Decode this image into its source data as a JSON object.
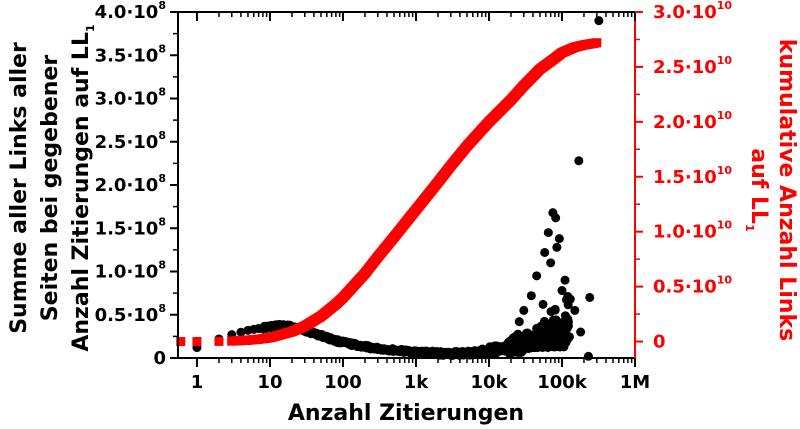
{
  "chart_data": {
    "type": "scatter",
    "xlabel": "Anzahl Zitierungen",
    "x_scale": "log",
    "xlim": [
      0.55,
      1000000
    ],
    "x_ticks": [
      {
        "value": 1,
        "label": "1"
      },
      {
        "value": 10,
        "label": "10"
      },
      {
        "value": 100,
        "label": "100"
      },
      {
        "value": 1000,
        "label": "1k"
      },
      {
        "value": 10000,
        "label": "10k"
      },
      {
        "value": 100000,
        "label": "100k"
      },
      {
        "value": 1000000,
        "label": "1M"
      }
    ],
    "y_left": {
      "label_lines": [
        "Summe aller Links aller",
        "Seiten bei gegebener",
        "Anzahl Zitierungen auf LL"
      ],
      "label_subscript": "1",
      "color": "#000000",
      "ylim": [
        0,
        400000000
      ],
      "ticks": [
        {
          "value": 0,
          "mant": "0",
          "exp": ""
        },
        {
          "value": 50000000,
          "mant": "0.5·10",
          "exp": "8"
        },
        {
          "value": 100000000,
          "mant": "1.0·10",
          "exp": "8"
        },
        {
          "value": 150000000,
          "mant": "1.5·10",
          "exp": "8"
        },
        {
          "value": 200000000,
          "mant": "2.0·10",
          "exp": "8"
        },
        {
          "value": 250000000,
          "mant": "2.5·10",
          "exp": "8"
        },
        {
          "value": 300000000,
          "mant": "3.0·10",
          "exp": "8"
        },
        {
          "value": 350000000,
          "mant": "3.5·10",
          "exp": "8"
        },
        {
          "value": 400000000,
          "mant": "4.0·10",
          "exp": "8"
        }
      ]
    },
    "y_right": {
      "label_lines": [
        "kumulative Anzahl Links",
        "auf LL"
      ],
      "label_subscript": "1",
      "color": "#ff0000",
      "ylim": [
        -1500000000,
        30000000000
      ],
      "ticks": [
        {
          "value": 0,
          "mant": "0",
          "exp": ""
        },
        {
          "value": 5000000000,
          "mant": "0.5·10",
          "exp": "10"
        },
        {
          "value": 10000000000,
          "mant": "1.0·10",
          "exp": "10"
        },
        {
          "value": 15000000000,
          "mant": "1.5·10",
          "exp": "10"
        },
        {
          "value": 20000000000,
          "mant": "2.0·10",
          "exp": "10"
        },
        {
          "value": 25000000000,
          "mant": "2.5·10",
          "exp": "10"
        },
        {
          "value": 30000000000,
          "mant": "3.0·10",
          "exp": "10"
        }
      ]
    },
    "grid": false,
    "legend": "none",
    "series": [
      {
        "marker": "circle",
        "color": "#000000",
        "axis": "left",
        "trend": {
          "x": [
            1,
            2,
            3,
            5,
            8,
            12,
            15,
            20,
            30,
            50,
            80,
            100,
            200,
            300,
            500,
            800,
            1000,
            2000,
            3000,
            5000,
            10000,
            20000,
            50000
          ],
          "y": [
            12000000,
            22000000,
            27000000,
            32000000,
            35000000,
            37000000,
            37500000,
            36000000,
            32000000,
            26000000,
            20000000,
            18000000,
            13000000,
            11000000,
            9000000,
            7500000,
            7000000,
            5500000,
            5000000,
            5500000,
            7000000,
            9000000,
            12000000
          ]
        },
        "outliers": [
          {
            "x": 320000,
            "y": 390000000
          },
          {
            "x": 170000,
            "y": 228000000
          },
          {
            "x": 75000,
            "y": 168000000
          },
          {
            "x": 82000,
            "y": 162000000
          },
          {
            "x": 65000,
            "y": 145000000
          },
          {
            "x": 92000,
            "y": 138000000
          },
          {
            "x": 85000,
            "y": 128000000
          },
          {
            "x": 58000,
            "y": 122000000
          },
          {
            "x": 70000,
            "y": 110000000
          },
          {
            "x": 110000,
            "y": 90000000
          },
          {
            "x": 45000,
            "y": 95000000
          },
          {
            "x": 100000,
            "y": 78000000
          },
          {
            "x": 240000,
            "y": 70000000
          },
          {
            "x": 130000,
            "y": 68000000
          },
          {
            "x": 38000,
            "y": 72000000
          },
          {
            "x": 55000,
            "y": 62000000
          },
          {
            "x": 150000,
            "y": 55000000
          },
          {
            "x": 30000,
            "y": 55000000
          },
          {
            "x": 120000,
            "y": 45000000
          },
          {
            "x": 60000,
            "y": 40000000
          },
          {
            "x": 26000,
            "y": 42000000
          },
          {
            "x": 180000,
            "y": 30000000
          },
          {
            "x": 230000,
            "y": 2000000
          }
        ]
      },
      {
        "marker": "square",
        "color": "#ff0000",
        "axis": "right",
        "x": [
          0.6,
          1,
          2,
          3,
          5,
          8,
          10,
          20,
          30,
          50,
          80,
          100,
          200,
          300,
          500,
          800,
          1000,
          2000,
          3000,
          5000,
          8000,
          10000,
          20000,
          30000,
          50000,
          80000,
          100000,
          150000,
          200000,
          300000
        ],
        "y": [
          0,
          0,
          10000000,
          40000000,
          120000000,
          250000000,
          350000000,
          900000000,
          1400000000,
          2300000000,
          3400000000,
          4000000000,
          6200000000,
          7700000000,
          9500000000,
          11200000000,
          12000000000,
          14500000000,
          16000000000,
          17800000000,
          19300000000,
          20000000000,
          22000000000,
          23300000000,
          24800000000,
          25800000000,
          26300000000,
          26800000000,
          27000000000,
          27200000000
        ]
      }
    ]
  }
}
